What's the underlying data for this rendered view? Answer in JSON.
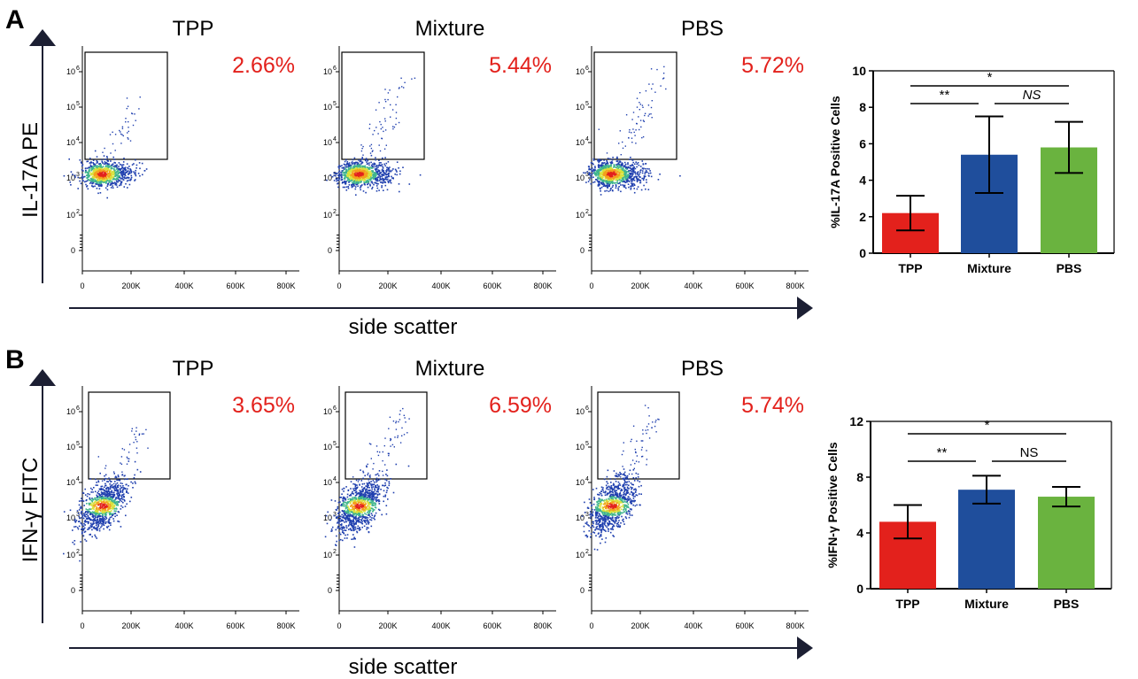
{
  "panels": [
    {
      "letter": "A",
      "marker_label": "IL-17A PE",
      "x_axis_label": "side scatter",
      "flow": [
        {
          "title": "TPP",
          "percent": "2.66%",
          "spread": 0.6,
          "density": 1.0
        },
        {
          "title": "Mixture",
          "percent": "5.44%",
          "spread": 1.0,
          "density": 1.15
        },
        {
          "title": "PBS",
          "percent": "5.72%",
          "spread": 1.05,
          "density": 1.2
        }
      ]
    },
    {
      "letter": "B",
      "marker_label": "IFN-γ FITC",
      "x_axis_label": "side scatter",
      "flow": [
        {
          "title": "TPP",
          "percent": "3.65%",
          "spread": 0.8,
          "density": 1.0
        },
        {
          "title": "Mixture",
          "percent": "6.59%",
          "spread": 1.0,
          "density": 1.1
        },
        {
          "title": "PBS",
          "percent": "5.74%",
          "spread": 0.95,
          "density": 1.05
        }
      ]
    }
  ],
  "flow_axes": {
    "x_ticks": [
      "0",
      "200K",
      "400K",
      "600K",
      "800K"
    ],
    "y_ticks": [
      {
        "base": "0",
        "exp": ""
      },
      {
        "base": "10",
        "exp": "2"
      },
      {
        "base": "10",
        "exp": "3"
      },
      {
        "base": "10",
        "exp": "4"
      },
      {
        "base": "10",
        "exp": "5"
      },
      {
        "base": "10",
        "exp": "6"
      }
    ]
  },
  "chart_data": [
    {
      "type": "bar",
      "categories": [
        "TPP",
        "Mixture",
        "PBS"
      ],
      "values": [
        2.2,
        5.4,
        5.8
      ],
      "errors": [
        0.95,
        2.1,
        1.4
      ],
      "colors": [
        "#e3211c",
        "#1f4e9c",
        "#6ab33f"
      ],
      "ylabel": "%IL-17A Positive Cells",
      "ylim": [
        0,
        10
      ],
      "yticks": [
        0,
        2,
        4,
        6,
        8,
        10
      ],
      "significance": [
        {
          "from": 0,
          "to": 2,
          "label": "*",
          "level": 2,
          "italic": false
        },
        {
          "from": 0,
          "to": 1,
          "label": "**",
          "level": 1,
          "italic": false
        },
        {
          "from": 1,
          "to": 2,
          "label": "NS",
          "level": 1,
          "italic": true
        }
      ]
    },
    {
      "type": "bar",
      "categories": [
        "TPP",
        "Mixture",
        "PBS"
      ],
      "values": [
        4.8,
        7.1,
        6.6
      ],
      "errors": [
        1.2,
        1.0,
        0.7
      ],
      "colors": [
        "#e3211c",
        "#1f4e9c",
        "#6ab33f"
      ],
      "ylabel": "%IFN-γ Positive Cells",
      "ylim": [
        0,
        12
      ],
      "yticks": [
        0,
        4,
        8,
        12
      ],
      "significance": [
        {
          "from": 0,
          "to": 2,
          "label": "*",
          "level": 2,
          "italic": false
        },
        {
          "from": 0,
          "to": 1,
          "label": "**",
          "level": 1,
          "italic": false
        },
        {
          "from": 1,
          "to": 2,
          "label": "NS",
          "level": 1,
          "italic": false
        }
      ]
    }
  ]
}
